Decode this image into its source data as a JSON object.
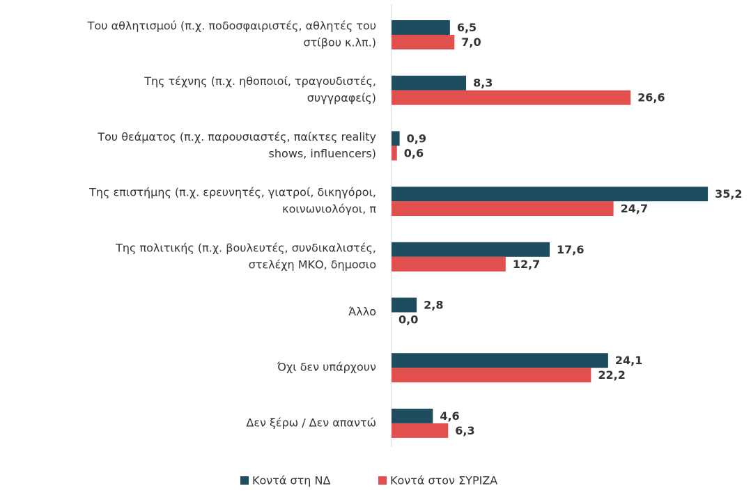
{
  "chart_data": {
    "type": "hbar",
    "categories": [
      [
        "Του αθλητισμού (π.χ. ποδοσφαιριστές, αθλητές του",
        "στίβου κ.λπ.)"
      ],
      [
        "Της τέχνης (π.χ. ηθοποιοί, τραγουδιστές,",
        "συγγραφείς)"
      ],
      [
        "Του θεάματος (π.χ. παρουσιαστές, παίκτες reality",
        "shows, influencers)"
      ],
      [
        "Της επιστήμης (π.χ. ερευνητές, γιατροί, δικηγόροι,",
        "κοινωνιολόγοι, π"
      ],
      [
        "Της πολιτικής (π.χ. βουλευτές, συνδικαλιστές,",
        "στελέχη ΜΚΟ, δημοσιο"
      ],
      [
        "Άλλο"
      ],
      [
        "Όχι δεν υπάρχουν"
      ],
      [
        "Δεν ξέρω / Δεν απαντώ"
      ]
    ],
    "series": [
      {
        "name": "Κοντά στη ΝΔ",
        "color": "#1d4d5e",
        "values": [
          6.5,
          8.3,
          0.9,
          35.2,
          17.6,
          2.8,
          24.1,
          4.6
        ],
        "value_labels": [
          "6,5",
          "8,3",
          "0,9",
          "35,2",
          "17,6",
          "2,8",
          "24,1",
          "4,6"
        ]
      },
      {
        "name": "Κοντά στον ΣΥΡΙΖΑ",
        "color": "#e24f4f",
        "values": [
          7.0,
          26.6,
          0.6,
          24.7,
          12.7,
          0.0,
          22.2,
          6.3
        ],
        "value_labels": [
          "7,0",
          "26,6",
          "0,6",
          "24,7",
          "12,7",
          "0,0",
          "22,2",
          "6,3"
        ]
      }
    ],
    "xlim": [
      0,
      40
    ],
    "legend": "bottom"
  }
}
